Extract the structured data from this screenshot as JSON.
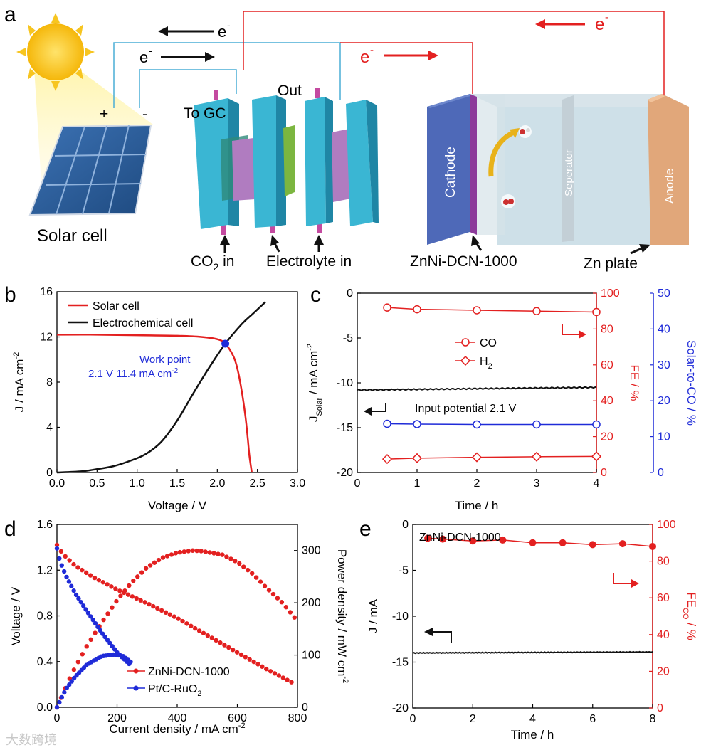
{
  "colors": {
    "red": "#e32020",
    "black": "#111111",
    "blue": "#1f2bd8",
    "wire_blue": "#4aaed6",
    "wire_red": "#e32020",
    "anode": "#e1a77a",
    "cathode": "#4e69b8",
    "cell_teal": "#3ab6d3",
    "sun": "#f7c520",
    "solar_panel": "#2c5b99"
  },
  "panel_a": {
    "label": "a",
    "solar_cell": "Solar cell",
    "plus": "+",
    "minus": "-",
    "electron": "e",
    "electron_sup": "-",
    "out": "Out",
    "to_gc": "To GC",
    "co2_in": "CO",
    "co2_in_sub": "2",
    "co2_in_tail": " in",
    "electrolyte_in": "Electrolyte in",
    "catalyst": "ZnNi-DCN-1000",
    "zn_plate": "Zn plate",
    "cathode": "Cathode",
    "separator": "Seperator",
    "anode": "Anode"
  },
  "chart_data": [
    {
      "id": "b",
      "type": "line",
      "title": "",
      "xlabel": "Voltage / V",
      "ylabel": "J / mA cm",
      "ylabel_sup": "-2",
      "xlim": [
        0,
        3
      ],
      "ylim": [
        0,
        16
      ],
      "xticks": [
        "0.0",
        "0.5",
        "1.0",
        "1.5",
        "2.0",
        "2.5",
        "3.0"
      ],
      "yticks": [
        "0",
        "4",
        "8",
        "12",
        "16"
      ],
      "series": [
        {
          "name": "Solar cell",
          "color": "#e32020",
          "x": [
            0,
            0.5,
            1.0,
            1.5,
            1.8,
            2.0,
            2.1,
            2.2,
            2.25,
            2.3,
            2.35,
            2.38,
            2.4,
            2.43
          ],
          "y": [
            12.2,
            12.2,
            12.15,
            12.1,
            12.0,
            11.8,
            11.4,
            10.3,
            9.2,
            7.4,
            5.0,
            3.0,
            1.5,
            0
          ]
        },
        {
          "name": "Electrochemical cell",
          "color": "#111111",
          "x": [
            0,
            0.3,
            0.5,
            0.7,
            0.9,
            1.1,
            1.3,
            1.5,
            1.7,
            1.9,
            2.1,
            2.3,
            2.45,
            2.6
          ],
          "y": [
            0,
            0.1,
            0.3,
            0.55,
            1.0,
            1.6,
            2.7,
            4.6,
            7.0,
            9.3,
            11.4,
            13.1,
            14.1,
            15.1
          ]
        }
      ],
      "annotation": {
        "line1": "Work point",
        "line2": "2.1 V 11.4 mA cm",
        "line2_sup": "-2",
        "x": 2.1,
        "y": 11.4
      }
    },
    {
      "id": "c",
      "type": "line",
      "xlabel": "Time / h",
      "ylabel_left": "J",
      "ylabel_left_sub": "Solar",
      "ylabel_left_tail": " / mA cm",
      "ylabel_left_sup": "-2",
      "ylabel_right1": "FE / %",
      "ylabel_right2": "Solar-to-CO / %",
      "xlim": [
        0,
        4
      ],
      "ylim_left": [
        -20,
        0
      ],
      "ylim_right1": [
        0,
        100
      ],
      "ylim_right2": [
        0,
        50
      ],
      "xticks": [
        "0",
        "1",
        "2",
        "3",
        "4"
      ],
      "yticks_left": [
        "-20",
        "-15",
        "-10",
        "-5",
        "0"
      ],
      "yticks_right1": [
        "0",
        "20",
        "40",
        "60",
        "80",
        "100"
      ],
      "yticks_right2": [
        "0",
        "10",
        "20",
        "30",
        "40",
        "50"
      ],
      "current": {
        "x": [
          0,
          4
        ],
        "y": [
          -10.8,
          -10.5
        ],
        "color": "#111111"
      },
      "series": [
        {
          "name": "CO",
          "axis": "right1",
          "marker": "circle",
          "color": "#e32020",
          "x": [
            0.5,
            1,
            2,
            3,
            4
          ],
          "y": [
            92,
            91,
            90.5,
            90,
            89.5
          ]
        },
        {
          "name": "H",
          "name_sub": "2",
          "axis": "right1",
          "marker": "diamond",
          "color": "#e32020",
          "x": [
            0.5,
            1,
            2,
            3,
            4
          ],
          "y": [
            7.5,
            8,
            8.5,
            8.8,
            9
          ]
        },
        {
          "name": "Solar-to-CO",
          "axis": "right2",
          "marker": "circle",
          "color": "#1f2bd8",
          "x": [
            0.5,
            1,
            2,
            3,
            4
          ],
          "y": [
            13.6,
            13.5,
            13.4,
            13.4,
            13.4
          ]
        }
      ],
      "annotation": "Input potential 2.1 V"
    },
    {
      "id": "d",
      "type": "scatter",
      "xlabel": "Current density / mA cm",
      "xlabel_sup": "-2",
      "ylabel_left": "Voltage / V",
      "ylabel_right": "Power density / mW cm",
      "ylabel_right_sup": "-2",
      "xlim": [
        0,
        800
      ],
      "ylim_left": [
        0,
        1.6
      ],
      "ylim_right": [
        0,
        350
      ],
      "xticks": [
        "0",
        "200",
        "400",
        "600",
        "800"
      ],
      "yticks_left": [
        "0.0",
        "0.4",
        "0.8",
        "1.2",
        "1.6"
      ],
      "yticks_right": [
        "0",
        "100",
        "200",
        "300"
      ],
      "series": [
        {
          "name": "ZnNi-DCN-1000",
          "color": "#e32020",
          "voltage": {
            "x": [
              0,
              20,
              60,
              120,
              200,
              300,
              400,
              500,
              600,
              700,
              780
            ],
            "y": [
              1.42,
              1.34,
              1.24,
              1.14,
              1.03,
              0.91,
              0.78,
              0.63,
              0.48,
              0.33,
              0.22
            ]
          },
          "power": {
            "x": [
              0,
              50,
              100,
              150,
              200,
              250,
              300,
              350,
              400,
              450,
              480,
              550,
              600,
              650,
              700,
              750,
              790
            ],
            "y": [
              0,
              65,
              118,
              163,
              205,
              240,
              268,
              286,
              296,
              300,
              299,
              292,
              278,
              256,
              227,
              200,
              172
            ]
          }
        },
        {
          "name": "Pt/C-RuO",
          "name_sub": "2",
          "color": "#1f2bd8",
          "voltage": {
            "x": [
              0,
              10,
              30,
              60,
              100,
              150,
              200,
              240
            ],
            "y": [
              1.39,
              1.28,
              1.15,
              1.0,
              0.84,
              0.65,
              0.48,
              0.38
            ]
          },
          "power": {
            "x": [
              0,
              30,
              60,
              100,
              150,
              190,
              220,
              245
            ],
            "y": [
              0,
              35,
              58,
              82,
              98,
              101,
              98,
              87
            ]
          }
        }
      ]
    },
    {
      "id": "e",
      "type": "line",
      "xlabel": "Time / h",
      "ylabel_left": "J / mA",
      "ylabel_right": "FE",
      "ylabel_right_sub": "CO",
      "ylabel_right_tail": " / %",
      "xlim": [
        0,
        8
      ],
      "ylim_left": [
        -20,
        0
      ],
      "ylim_right": [
        0,
        100
      ],
      "xticks": [
        "0",
        "2",
        "4",
        "6",
        "8"
      ],
      "yticks_left": [
        "-20",
        "-15",
        "-10",
        "-5",
        "0"
      ],
      "yticks_right": [
        "0",
        "20",
        "40",
        "60",
        "80",
        "100"
      ],
      "title": "ZnNi-DCN-1000",
      "current": {
        "x": [
          0,
          8
        ],
        "y": [
          -14.0,
          -13.9
        ],
        "color": "#111111"
      },
      "series": [
        {
          "name": "FE CO",
          "axis": "right",
          "marker": "filled-circle",
          "color": "#e32020",
          "x": [
            0.5,
            1,
            2,
            3,
            4,
            5,
            6,
            7,
            8
          ],
          "y": [
            92.5,
            92,
            91,
            91.5,
            90,
            90,
            89,
            89.5,
            88
          ]
        }
      ]
    }
  ],
  "panel_labels": {
    "b": "b",
    "c": "c",
    "d": "d",
    "e": "e"
  },
  "watermark": "大数跨境"
}
